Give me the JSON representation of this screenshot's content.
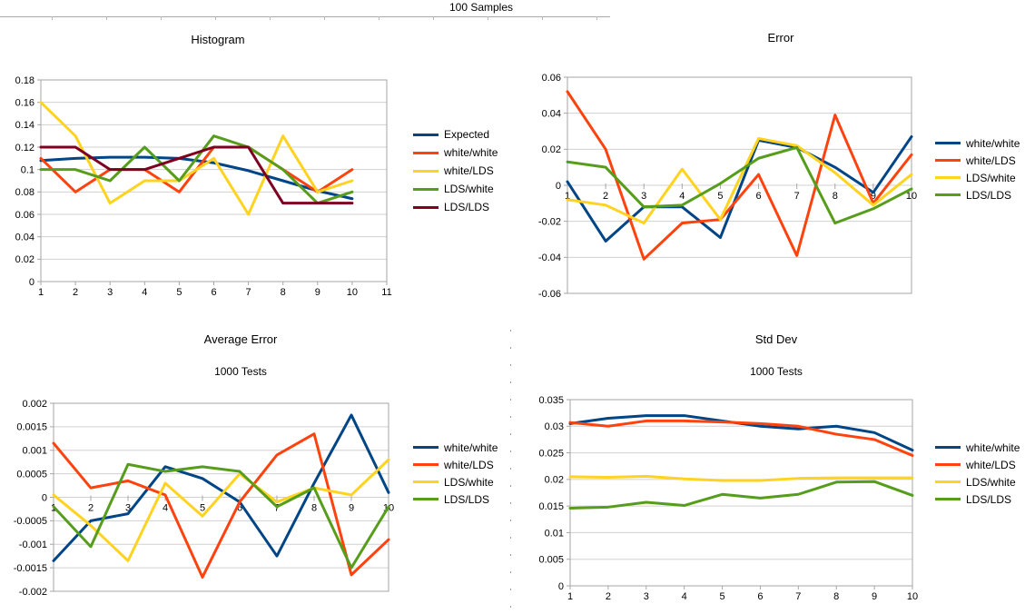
{
  "page": {
    "top_title": "100 Samples"
  },
  "palette": {
    "blue": "#004586",
    "red": "#FF420E",
    "yellow": "#FFD320",
    "green": "#579D1C",
    "maroon": "#7E0021",
    "grid": "#d0d0d0",
    "axis": "#a6a6a6",
    "text": "#000000"
  },
  "chart_data": [
    {
      "id": "histogram",
      "type": "line",
      "title": "Histogram",
      "x": [
        1,
        2,
        3,
        4,
        5,
        6,
        7,
        8,
        9,
        10
      ],
      "x_ticks": [
        "1",
        "2",
        "3",
        "4",
        "5",
        "6",
        "7",
        "8",
        "9",
        "10",
        "11"
      ],
      "xlim": [
        1,
        11
      ],
      "y_ticks": [
        "0.18",
        "0.16",
        "0.14",
        "0.12",
        "0.1",
        "0.08",
        "0.06",
        "0.04",
        "0.02",
        "0"
      ],
      "ylim": [
        0,
        0.18
      ],
      "grid": true,
      "legend_position": "right",
      "series": [
        {
          "name": "Expected",
          "color": "blue",
          "values": [
            0.108,
            0.11,
            0.111,
            0.111,
            0.11,
            0.106,
            0.099,
            0.09,
            0.081,
            0.074
          ]
        },
        {
          "name": "white/white",
          "color": "red",
          "values": [
            0.11,
            0.08,
            0.1,
            0.1,
            0.08,
            0.12,
            0.12,
            0.1,
            0.08,
            0.1
          ]
        },
        {
          "name": "white/LDS",
          "color": "yellow",
          "values": [
            0.16,
            0.13,
            0.07,
            0.09,
            0.09,
            0.11,
            0.06,
            0.13,
            0.08,
            0.09
          ]
        },
        {
          "name": "LDS/white",
          "color": "green",
          "values": [
            0.1,
            0.1,
            0.09,
            0.12,
            0.09,
            0.13,
            0.12,
            0.1,
            0.07,
            0.08
          ]
        },
        {
          "name": "LDS/LDS",
          "color": "maroon",
          "values": [
            0.12,
            0.12,
            0.1,
            0.1,
            0.11,
            0.12,
            0.12,
            0.07,
            0.07,
            0.07
          ]
        }
      ]
    },
    {
      "id": "error",
      "type": "line",
      "title": "Error",
      "x": [
        1,
        2,
        3,
        4,
        5,
        6,
        7,
        8,
        9,
        10
      ],
      "x_ticks": [
        "1",
        "2",
        "3",
        "4",
        "5",
        "6",
        "7",
        "8",
        "9",
        "10"
      ],
      "xlim": [
        1,
        10
      ],
      "y_ticks": [
        "0.06",
        "0.04",
        "0.02",
        "0",
        "-0.02",
        "-0.04",
        "-0.06"
      ],
      "ylim": [
        -0.06,
        0.06
      ],
      "grid": true,
      "legend_position": "right",
      "series": [
        {
          "name": "white/white",
          "color": "blue",
          "values": [
            0.002,
            -0.031,
            -0.012,
            -0.012,
            -0.029,
            0.025,
            0.021,
            0.01,
            -0.004,
            0.027
          ]
        },
        {
          "name": "white/LDS",
          "color": "red",
          "values": [
            0.052,
            0.02,
            -0.041,
            -0.021,
            -0.019,
            0.006,
            -0.039,
            0.039,
            -0.01,
            0.017
          ]
        },
        {
          "name": "LDS/white",
          "color": "yellow",
          "values": [
            -0.008,
            -0.011,
            -0.021,
            0.009,
            -0.019,
            0.026,
            0.022,
            0.007,
            -0.011,
            0.006
          ]
        },
        {
          "name": "LDS/LDS",
          "color": "green",
          "values": [
            0.013,
            0.01,
            -0.012,
            -0.011,
            0.001,
            0.015,
            0.021,
            -0.021,
            -0.013,
            -0.002
          ]
        }
      ]
    },
    {
      "id": "average_error",
      "type": "line",
      "title": "Average Error",
      "subtitle": "1000 Tests",
      "x": [
        1,
        2,
        3,
        4,
        5,
        6,
        7,
        8,
        9,
        10
      ],
      "x_ticks": [
        "1",
        "2",
        "3",
        "4",
        "5",
        "6",
        "7",
        "8",
        "9",
        "10"
      ],
      "xlim": [
        1,
        10
      ],
      "y_ticks": [
        "0.002",
        "0.0015",
        "0.001",
        "0.0005",
        "0",
        "-0.0005",
        "-0.001",
        "-0.0015",
        "-0.002"
      ],
      "ylim": [
        -0.002,
        0.002
      ],
      "grid": true,
      "legend_position": "right",
      "series": [
        {
          "name": "white/white",
          "color": "blue",
          "values": [
            -0.00135,
            -0.0005,
            -0.00035,
            0.00065,
            0.0004,
            -0.0001,
            -0.00125,
            0.0003,
            0.00175,
            0.0001
          ]
        },
        {
          "name": "white/LDS",
          "color": "red",
          "values": [
            0.00115,
            0.0002,
            0.00035,
            5e-05,
            -0.0017,
            -0.0001,
            0.0009,
            0.00135,
            -0.00165,
            -0.0009
          ]
        },
        {
          "name": "LDS/white",
          "color": "yellow",
          "values": [
            5e-05,
            -0.0006,
            -0.00135,
            0.0003,
            -0.0004,
            0.0005,
            -0.0001,
            0.0002,
            5e-05,
            0.0008
          ]
        },
        {
          "name": "LDS/LDS",
          "color": "green",
          "values": [
            -0.0002,
            -0.00105,
            0.0007,
            0.00055,
            0.00065,
            0.00055,
            -0.0002,
            0.0002,
            -0.0015,
            -0.0002
          ]
        }
      ]
    },
    {
      "id": "std_dev",
      "type": "line",
      "title": "Std Dev",
      "subtitle": "1000 Tests",
      "x": [
        1,
        2,
        3,
        4,
        5,
        6,
        7,
        8,
        9,
        10
      ],
      "x_ticks": [
        "1",
        "2",
        "3",
        "4",
        "5",
        "6",
        "7",
        "8",
        "9",
        "10"
      ],
      "xlim": [
        1,
        10
      ],
      "y_ticks": [
        "0.035",
        "0.03",
        "0.025",
        "0.02",
        "0.015",
        "0.01",
        "0.005",
        "0"
      ],
      "ylim": [
        0,
        0.035
      ],
      "grid": true,
      "legend_position": "right",
      "series": [
        {
          "name": "white/white",
          "color": "blue",
          "values": [
            0.0305,
            0.0315,
            0.032,
            0.032,
            0.031,
            0.03,
            0.0295,
            0.03,
            0.0288,
            0.0255
          ]
        },
        {
          "name": "white/LDS",
          "color": "red",
          "values": [
            0.0307,
            0.03,
            0.031,
            0.031,
            0.0308,
            0.0305,
            0.03,
            0.0285,
            0.0275,
            0.0245
          ]
        },
        {
          "name": "LDS/white",
          "color": "yellow",
          "values": [
            0.0205,
            0.0204,
            0.0206,
            0.0201,
            0.0198,
            0.0198,
            0.0202,
            0.0203,
            0.0203,
            0.0203
          ]
        },
        {
          "name": "LDS/LDS",
          "color": "green",
          "values": [
            0.0146,
            0.0148,
            0.0157,
            0.0151,
            0.0172,
            0.0165,
            0.0172,
            0.0195,
            0.0196,
            0.017
          ]
        }
      ]
    }
  ]
}
